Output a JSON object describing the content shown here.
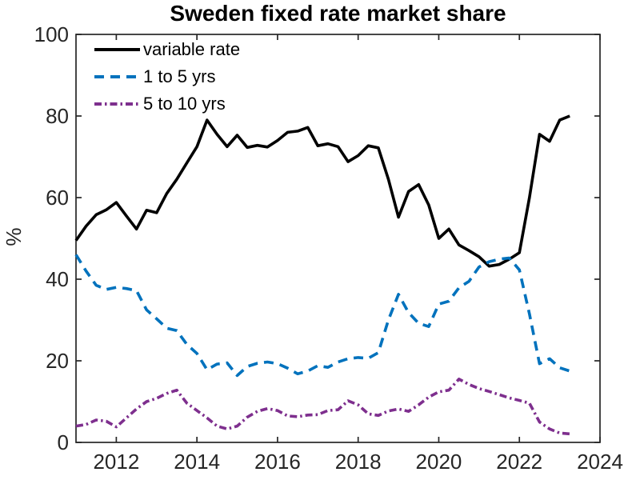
{
  "chart_data": {
    "type": "line",
    "title": "Sweden fixed rate market share",
    "xlabel": "",
    "ylabel": "%",
    "xlim": [
      2011,
      2024
    ],
    "ylim": [
      0,
      100
    ],
    "xticks": [
      2012,
      2014,
      2016,
      2018,
      2020,
      2022,
      2024
    ],
    "yticks": [
      0,
      20,
      40,
      60,
      80,
      100
    ],
    "grid": false,
    "legend_position": "top-left",
    "axis_color": "#262626",
    "x": [
      2011,
      2011.25,
      2011.5,
      2011.75,
      2012,
      2012.25,
      2012.5,
      2012.75,
      2013,
      2013.25,
      2013.5,
      2013.75,
      2014,
      2014.25,
      2014.5,
      2014.75,
      2015,
      2015.25,
      2015.5,
      2015.75,
      2016,
      2016.25,
      2016.5,
      2016.75,
      2017,
      2017.25,
      2017.5,
      2017.75,
      2018,
      2018.25,
      2018.5,
      2018.75,
      2019,
      2019.25,
      2019.5,
      2019.75,
      2020,
      2020.25,
      2020.5,
      2020.75,
      2021,
      2021.25,
      2021.5,
      2021.75,
      2022,
      2022.25,
      2022.5,
      2022.75,
      2023,
      2023.25
    ],
    "series": [
      {
        "name": "variable rate",
        "color": "#000000",
        "style": "solid",
        "values": [
          49.5,
          53,
          55.8,
          57,
          58.8,
          55.5,
          52.3,
          56.9,
          56.3,
          61,
          64.5,
          68.5,
          72.5,
          79,
          75.5,
          72.5,
          75.3,
          72.3,
          72.8,
          72.4,
          74,
          76,
          76.3,
          77.2,
          72.7,
          73.2,
          72.5,
          68.8,
          70.3,
          72.7,
          72.2,
          64.5,
          55.2,
          61.5,
          63.2,
          58.2,
          50,
          52.3,
          48.4,
          47,
          45.5,
          43.2,
          43.6,
          44.9,
          46.5,
          60,
          75.5,
          73.8,
          79,
          80
        ]
      },
      {
        "name": "1 to 5 yrs",
        "color": "#0072BD",
        "style": "dashed",
        "values": [
          46,
          42,
          38.5,
          37.5,
          38,
          37.7,
          37.2,
          32.5,
          30.3,
          28,
          27.4,
          24,
          21.8,
          17.8,
          19.2,
          19.5,
          16.4,
          18.6,
          19.4,
          19.7,
          19.3,
          18.2,
          16.8,
          17.5,
          18.8,
          18.4,
          19.7,
          20.5,
          20.8,
          20.6,
          22,
          30,
          36.3,
          31.8,
          29.2,
          28.4,
          33.9,
          34.6,
          37.9,
          39.5,
          43,
          44.3,
          44.9,
          45.2,
          42.3,
          31.5,
          19.3,
          20.5,
          18.3,
          17.5
        ]
      },
      {
        "name": "5 to 10 yrs",
        "color": "#7E2F8E",
        "style": "dashdot",
        "values": [
          4,
          4.4,
          5.5,
          5.2,
          3.8,
          6,
          8.2,
          10,
          10.8,
          12,
          12.8,
          9.6,
          7.8,
          6,
          4,
          3.3,
          4,
          6.2,
          7.6,
          8.3,
          7.8,
          6.5,
          6.3,
          6.7,
          6.8,
          7.8,
          8,
          10.2,
          9.2,
          7,
          6.6,
          7.7,
          8.2,
          7.6,
          9.2,
          11.1,
          12.4,
          12.8,
          15.5,
          14.2,
          13.2,
          12.5,
          11.7,
          10.9,
          10.3,
          9.6,
          5,
          3.3,
          2.3,
          2.1
        ]
      }
    ]
  }
}
